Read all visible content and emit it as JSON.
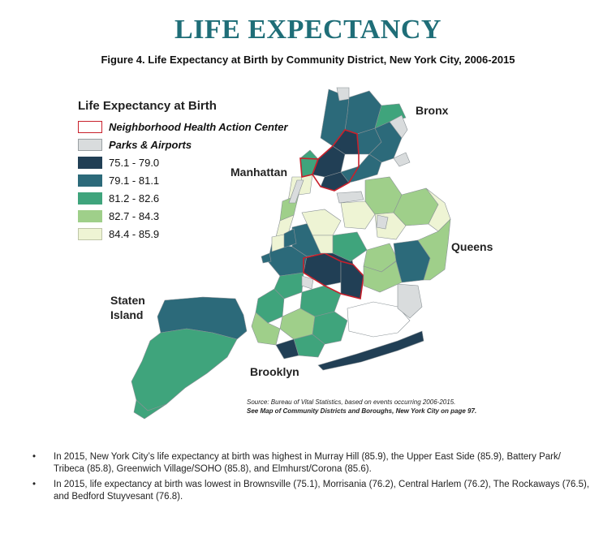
{
  "title": "LIFE EXPECTANCY",
  "subtitle": "Figure 4. Life Expectancy at Birth by Community District, New York City, 2006-2015",
  "legend": {
    "title": "Life Expectancy at Birth",
    "items": [
      {
        "label": "Neighborhood Health Action Center",
        "color": "#ffffff",
        "border": "#c8202b"
      },
      {
        "label": "Parks & Airports",
        "color": "#d9dcdd"
      },
      {
        "label": "75.1 - 79.0",
        "color": "#213f55"
      },
      {
        "label": "79.1 - 81.1",
        "color": "#2c6a7a"
      },
      {
        "label": "81.2 - 82.6",
        "color": "#3fa47c"
      },
      {
        "label": "82.7 - 84.3",
        "color": "#9fcf8a"
      },
      {
        "label": "84.4 - 85.9",
        "color": "#eef4d4"
      }
    ]
  },
  "boroughs": {
    "bronx": "Bronx",
    "manhattan": "Manhattan",
    "queens": "Queens",
    "staten_island_line1": "Staten",
    "staten_island_line2": "Island",
    "brooklyn": "Brooklyn"
  },
  "source": {
    "line1": "Source: Bureau of Vital Statistics, based on events occurring 2006-2015.",
    "line2": "See Map of Community Districts and Boroughs, New York City on page 97."
  },
  "bullets": [
    "In 2015, New York City’s life expectancy at birth was highest in Murray Hill (85.9), the Upper East Side (85.9), Battery Park/ Tribeca (85.8), Greenwich Village/SOHO (85.8), and Elmhurst/Corona (85.6).",
    "In 2015, life expectancy at birth was lowest in Brownsville (75.1), Morrisania (76.2), Central Harlem (76.2), The Rockaways (76.5), and Bedford Stuyvesant (76.8)."
  ],
  "colors": {
    "c1": "#213f55",
    "c2": "#2c6a7a",
    "c3": "#3fa47c",
    "c4": "#9fcf8a",
    "c5": "#eef4d4",
    "park": "#d9dcdd",
    "action": "#c8202b",
    "title": "#1f6e78"
  }
}
